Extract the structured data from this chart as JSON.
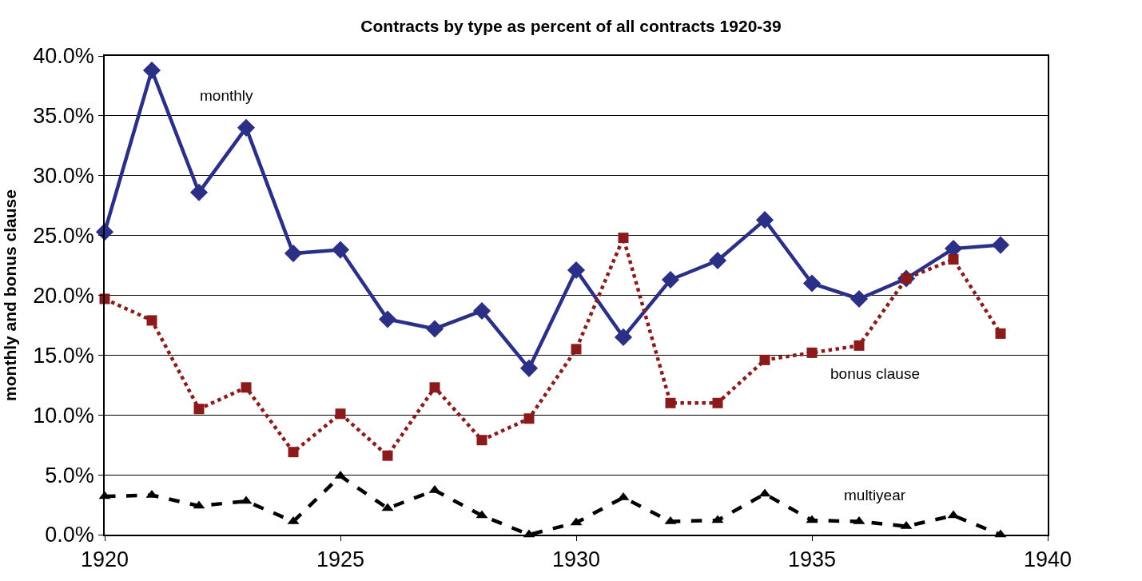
{
  "chart_data": {
    "type": "line",
    "title": "Contracts by type as percent of all contracts 1920-39",
    "ylabel": "monthly and bonus clause",
    "x": [
      1920,
      1921,
      1922,
      1923,
      1924,
      1925,
      1926,
      1927,
      1928,
      1929,
      1930,
      1931,
      1932,
      1933,
      1934,
      1935,
      1936,
      1937,
      1938,
      1939
    ],
    "series": [
      {
        "name": "monthly",
        "color": "#2b2f86",
        "marker": "diamond",
        "line_style": "solid",
        "values": [
          25.3,
          38.8,
          28.6,
          34.0,
          23.5,
          23.8,
          18.0,
          17.2,
          18.7,
          13.9,
          22.1,
          16.5,
          21.3,
          22.9,
          26.3,
          21.0,
          19.7,
          21.4,
          23.9,
          24.2
        ]
      },
      {
        "name": "bonus clause",
        "color": "#8b1a1a",
        "marker": "square",
        "line_style": "dotted",
        "values": [
          19.7,
          17.9,
          10.5,
          12.3,
          6.9,
          10.1,
          6.6,
          12.3,
          7.9,
          9.7,
          15.5,
          24.8,
          11.0,
          11.0,
          14.6,
          15.2,
          15.8,
          21.4,
          23.0,
          16.8
        ]
      },
      {
        "name": "multiyear",
        "color": "#000000",
        "marker": "triangle",
        "line_style": "dashed",
        "values": [
          3.2,
          3.3,
          2.4,
          2.8,
          1.1,
          4.9,
          2.2,
          3.7,
          1.6,
          0.0,
          1.0,
          3.1,
          1.1,
          1.2,
          3.4,
          1.2,
          1.1,
          0.7,
          1.6,
          0.0
        ]
      }
    ],
    "xlim": [
      1920,
      1940
    ],
    "xticks": [
      1920,
      1925,
      1930,
      1935,
      1940
    ],
    "ylim": [
      0,
      40
    ],
    "yticks": [
      {
        "value": 0,
        "label": "0.0%"
      },
      {
        "value": 5,
        "label": "5.0%"
      },
      {
        "value": 10,
        "label": "10.0%"
      },
      {
        "value": 15,
        "label": "15.0%"
      },
      {
        "value": 20,
        "label": "20.0%"
      },
      {
        "value": 25,
        "label": "25.0%"
      },
      {
        "value": 30,
        "label": "30.0%"
      },
      {
        "value": 35,
        "label": "35.0%"
      },
      {
        "value": 40,
        "label": "40.0%"
      }
    ],
    "grid": "y",
    "legend": false
  }
}
